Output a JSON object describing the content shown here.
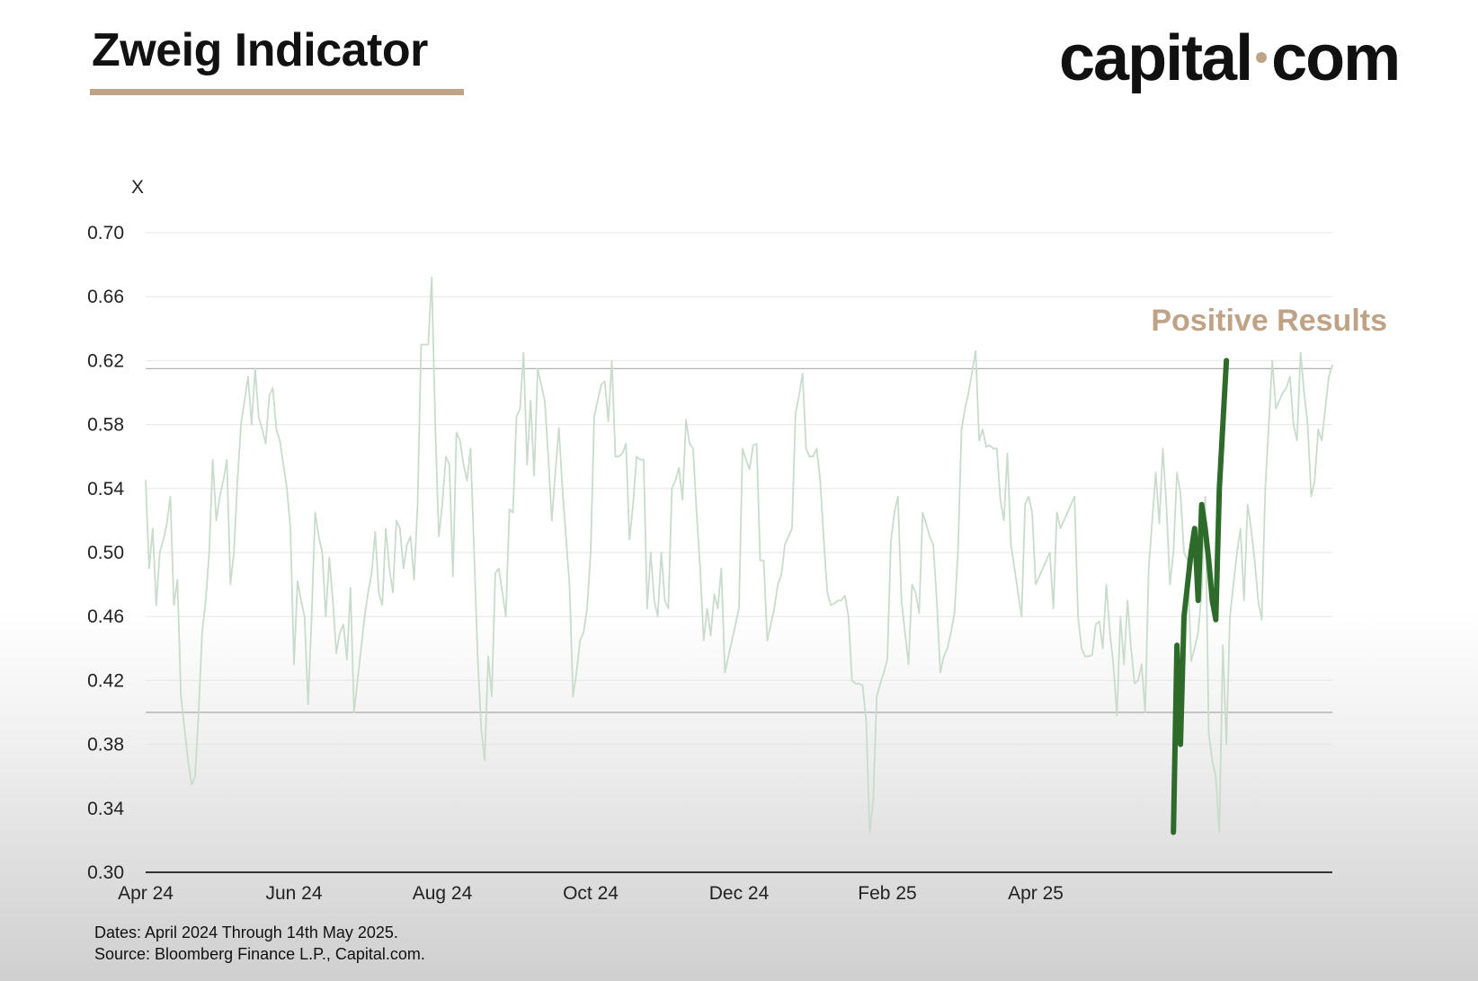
{
  "header": {
    "title": "Zweig Indicator",
    "brand_left": "capital",
    "brand_right": "com"
  },
  "footer": {
    "dates": "Dates: April 2024 Through 14th May 2025.",
    "source": "Source: Bloomberg Finance L.P., Capital.com."
  },
  "colors": {
    "accent": "#bfa386",
    "line_faded": "#c9dccb",
    "line_highlight": "#2e6b2b"
  },
  "chart_data": {
    "type": "line",
    "title": "Zweig Indicator",
    "ylabel": "X",
    "xlabel": "",
    "ylim": [
      0.3,
      0.7
    ],
    "yticks": [
      "0.70",
      "0.66",
      "0.62",
      "0.58",
      "0.54",
      "0.50",
      "0.46",
      "0.42",
      "0.38",
      "0.34",
      "0.30"
    ],
    "x_tick_labels": [
      "Apr 24",
      "Jun 24",
      "Aug 24",
      "Oct 24",
      "Dec 24",
      "Feb 25",
      "Apr 25"
    ],
    "x_tick_index": [
      0,
      42,
      84,
      126,
      168,
      210,
      252
    ],
    "reference_lines": [
      {
        "name": "upper-threshold",
        "value": 0.615
      },
      {
        "name": "lower-threshold",
        "value": 0.4
      }
    ],
    "annotation": "Positive Results",
    "grid": true,
    "series": [
      {
        "name": "Zweig Indicator",
        "style": "faded",
        "values": [
          0.545,
          0.49,
          0.515,
          0.467,
          0.5,
          0.508,
          0.518,
          0.535,
          0.467,
          0.483,
          0.41,
          0.39,
          0.37,
          0.355,
          0.36,
          0.4,
          0.45,
          0.47,
          0.5,
          0.558,
          0.52,
          0.535,
          0.545,
          0.558,
          0.48,
          0.5,
          0.545,
          0.58,
          0.595,
          0.61,
          0.58,
          0.615,
          0.585,
          0.577,
          0.568,
          0.598,
          0.603,
          0.577,
          0.57,
          0.555,
          0.54,
          0.515,
          0.43,
          0.482,
          0.47,
          0.46,
          0.405,
          0.46,
          0.525,
          0.51,
          0.5,
          0.46,
          0.497,
          0.47,
          0.437,
          0.45,
          0.455,
          0.433,
          0.478,
          0.4,
          0.42,
          0.44,
          0.46,
          0.475,
          0.487,
          0.513,
          0.475,
          0.467,
          0.515,
          0.49,
          0.475,
          0.52,
          0.515,
          0.49,
          0.505,
          0.51,
          0.483,
          0.53,
          0.63,
          0.63,
          0.63,
          0.672,
          0.58,
          0.51,
          0.53,
          0.56,
          0.555,
          0.485,
          0.575,
          0.57,
          0.555,
          0.545,
          0.565,
          0.5,
          0.435,
          0.39,
          0.37,
          0.435,
          0.41,
          0.487,
          0.49,
          0.475,
          0.46,
          0.527,
          0.525,
          0.585,
          0.59,
          0.625,
          0.555,
          0.595,
          0.548,
          0.615,
          0.605,
          0.595,
          0.56,
          0.52,
          0.55,
          0.578,
          0.54,
          0.51,
          0.48,
          0.41,
          0.425,
          0.445,
          0.45,
          0.465,
          0.5,
          0.585,
          0.595,
          0.605,
          0.607,
          0.582,
          0.62,
          0.56,
          0.56,
          0.562,
          0.568,
          0.508,
          0.53,
          0.56,
          0.558,
          0.558,
          0.465,
          0.5,
          0.47,
          0.46,
          0.5,
          0.47,
          0.465,
          0.54,
          0.545,
          0.553,
          0.533,
          0.583,
          0.568,
          0.565,
          0.525,
          0.49,
          0.445,
          0.465,
          0.448,
          0.474,
          0.465,
          0.49,
          0.425,
          0.435,
          0.445,
          0.455,
          0.465,
          0.565,
          0.558,
          0.552,
          0.567,
          0.568,
          0.495,
          0.495,
          0.445,
          0.455,
          0.465,
          0.48,
          0.486,
          0.505,
          0.51,
          0.515,
          0.587,
          0.598,
          0.612,
          0.565,
          0.56,
          0.56,
          0.565,
          0.545,
          0.508,
          0.475,
          0.467,
          0.468,
          0.47,
          0.47,
          0.473,
          0.46,
          0.42,
          0.418,
          0.418,
          0.417,
          0.395,
          0.325,
          0.345,
          0.41,
          0.418,
          0.425,
          0.433,
          0.507,
          0.525,
          0.535,
          0.47,
          0.45,
          0.43,
          0.48,
          0.475,
          0.462,
          0.525,
          0.518,
          0.51,
          0.505,
          0.47,
          0.425,
          0.435,
          0.44,
          0.45,
          0.462,
          0.5,
          0.577,
          0.59,
          0.6,
          0.613,
          0.626,
          0.57,
          0.577,
          0.566,
          0.567,
          0.565,
          0.565,
          0.533,
          0.52,
          0.562,
          0.505,
          0.49,
          0.475,
          0.46,
          0.53,
          0.535,
          0.525,
          0.48,
          0.485,
          0.49,
          0.495,
          0.5,
          0.465,
          0.525,
          0.515,
          0.52,
          0.525,
          0.53,
          0.535,
          0.46,
          0.44,
          0.435,
          0.435,
          0.436,
          0.455,
          0.457,
          0.44,
          0.48,
          0.45,
          0.43,
          0.398,
          0.46,
          0.43,
          0.47,
          0.44,
          0.418,
          0.42,
          0.43,
          0.4,
          0.49,
          0.52,
          0.55,
          0.518,
          0.565,
          0.53,
          0.48,
          0.5,
          0.55,
          0.537,
          0.5,
          0.495,
          0.432,
          0.44,
          0.45,
          0.475,
          0.535,
          0.387,
          0.37,
          0.36,
          0.325,
          0.442,
          0.38,
          0.46,
          0.48,
          0.5,
          0.515,
          0.47,
          0.53,
          0.515,
          0.495,
          0.47,
          0.458,
          0.54,
          0.58,
          0.62,
          0.59,
          0.595,
          0.6,
          0.603,
          0.61,
          0.58,
          0.57,
          0.625,
          0.6,
          0.58,
          0.535,
          0.545,
          0.577,
          0.57,
          0.59,
          0.61,
          0.617
        ]
      },
      {
        "name": "Positive Results",
        "style": "highlight",
        "start_index": 291,
        "values": [
          0.325,
          0.442,
          0.38,
          0.46,
          0.48,
          0.5,
          0.515,
          0.47,
          0.53,
          0.515,
          0.495,
          0.47,
          0.458,
          0.54,
          0.58,
          0.62
        ]
      }
    ]
  }
}
